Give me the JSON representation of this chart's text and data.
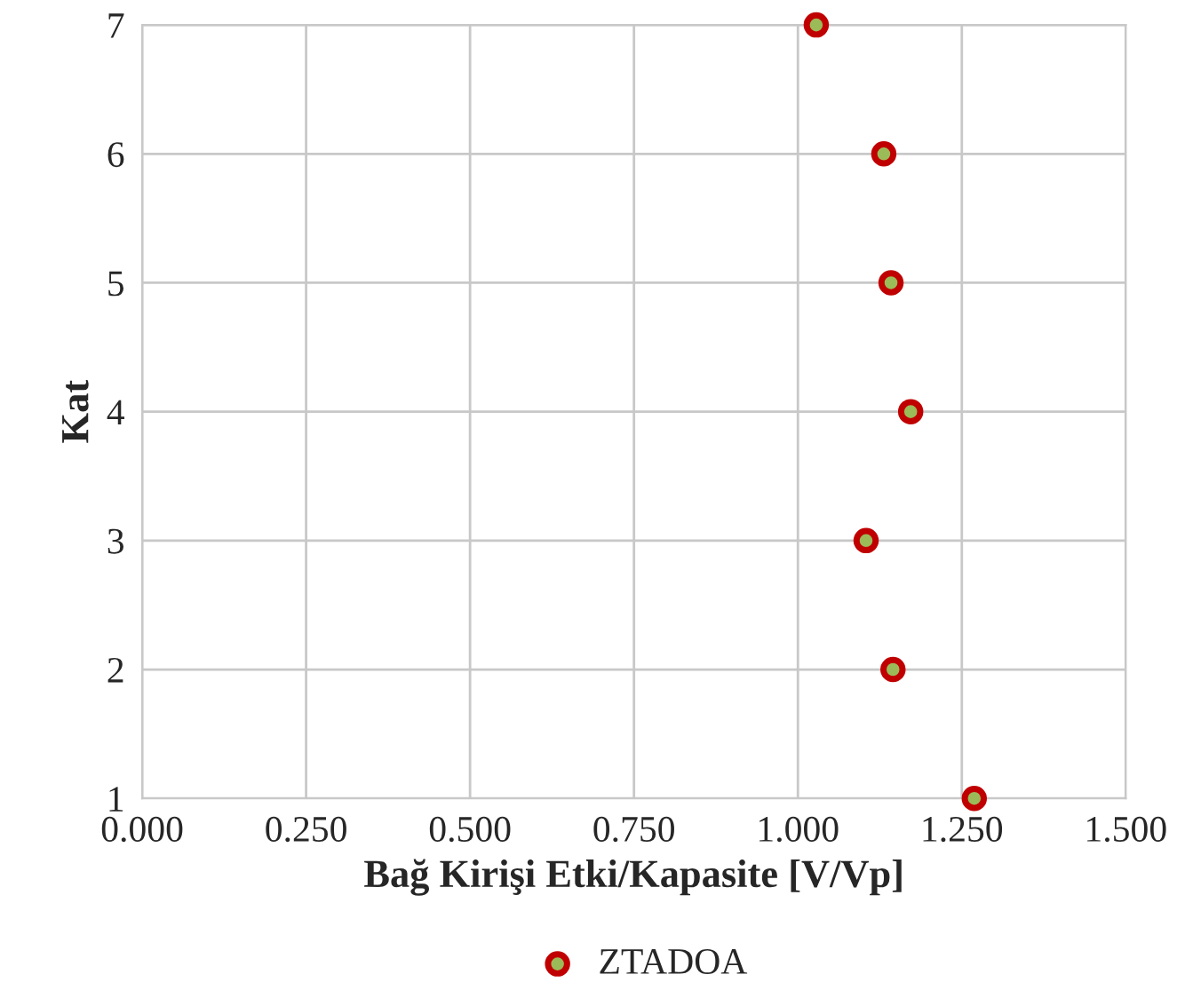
{
  "chart_data": {
    "type": "scatter",
    "xlabel": "Bağ Kirişi Etki/Kapasite [V/Vp]",
    "ylabel": "Kat",
    "x": [
      1.028,
      1.131,
      1.142,
      1.172,
      1.104,
      1.145,
      1.269
    ],
    "series": [
      {
        "name": "ZTADOA",
        "color": "#c00000",
        "values": [
          7,
          6,
          5,
          4,
          3,
          2,
          1
        ]
      }
    ],
    "xlim": [
      0,
      1.5
    ],
    "xticks": [
      {
        "value": 0,
        "label": "0.000"
      },
      {
        "value": 0.25,
        "label": "0.250"
      },
      {
        "value": 0.5,
        "label": "0.500"
      },
      {
        "value": 0.75,
        "label": "0.750"
      },
      {
        "value": 1.0,
        "label": "1.000"
      },
      {
        "value": 1.25,
        "label": "1.250"
      },
      {
        "value": 1.5,
        "label": "1.500"
      }
    ],
    "ylim": [
      1,
      7
    ],
    "yticks": [
      1,
      2,
      3,
      4,
      5,
      6,
      7
    ],
    "grid": true,
    "legend": "bottom",
    "marker": "circle"
  }
}
